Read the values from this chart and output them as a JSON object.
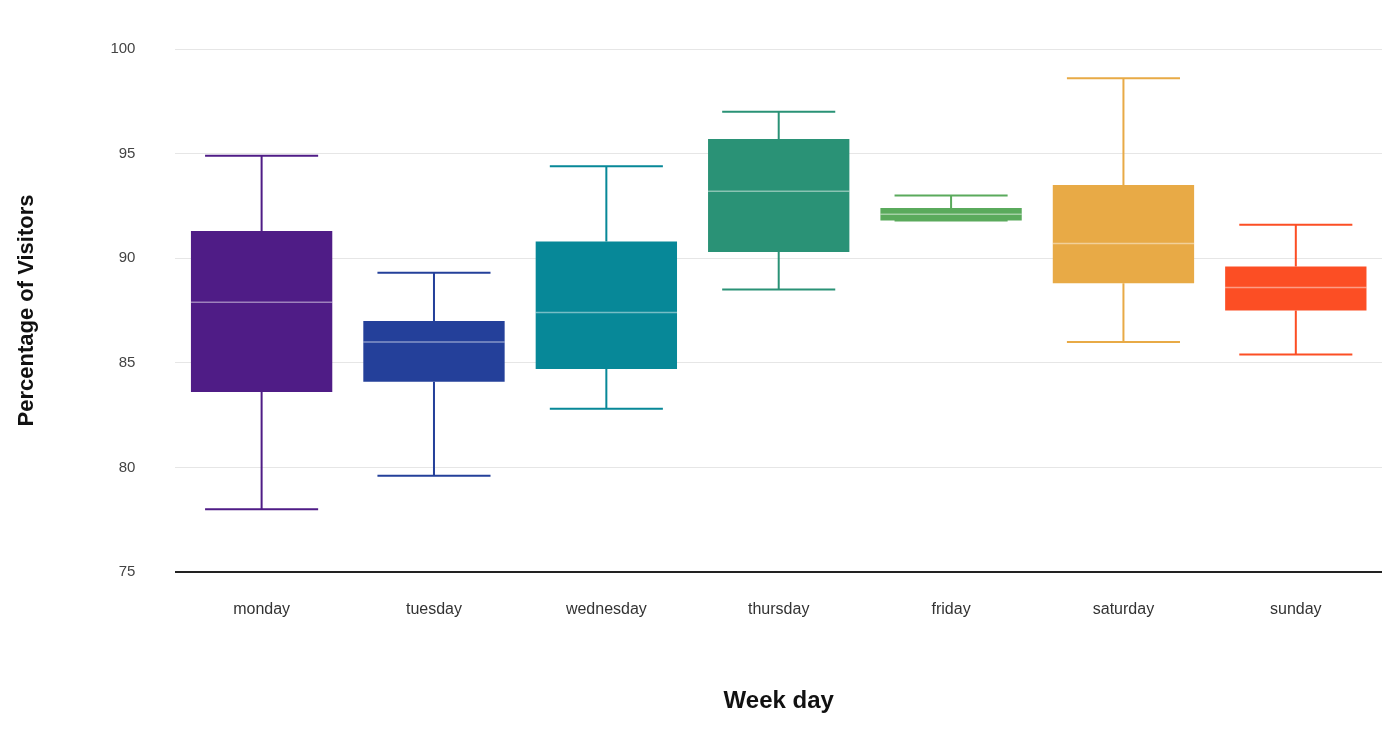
{
  "chart_data": {
    "type": "box",
    "xlabel": "Week day",
    "ylabel": "Percentage of Visitors",
    "categories": [
      "monday",
      "tuesday",
      "wednesday",
      "thursday",
      "friday",
      "saturday",
      "sunday"
    ],
    "colors": [
      "#4f1c86",
      "#24409a",
      "#078898",
      "#2a9276",
      "#5aaa5c",
      "#e8aa46",
      "#fc4e24"
    ],
    "boxes": [
      {
        "low": 78.0,
        "q1": 83.6,
        "median": 87.9,
        "q3": 91.3,
        "high": 94.9
      },
      {
        "low": 79.6,
        "q1": 84.1,
        "median": 86.0,
        "q3": 87.0,
        "high": 89.3
      },
      {
        "low": 82.8,
        "q1": 84.7,
        "median": 87.4,
        "q3": 90.8,
        "high": 94.4
      },
      {
        "low": 88.5,
        "q1": 90.3,
        "median": 93.2,
        "q3": 95.7,
        "high": 97.0
      },
      {
        "low": 91.8,
        "q1": 91.8,
        "median": 92.1,
        "q3": 92.4,
        "high": 93.0
      },
      {
        "low": 86.0,
        "q1": 88.8,
        "median": 90.7,
        "q3": 93.5,
        "high": 98.6
      },
      {
        "low": 85.4,
        "q1": 87.5,
        "median": 88.6,
        "q3": 89.6,
        "high": 91.6
      }
    ],
    "ylim": [
      75,
      100
    ],
    "yticks": [
      75,
      80,
      85,
      90,
      95,
      100
    ],
    "grid": "y",
    "legend": false
  }
}
